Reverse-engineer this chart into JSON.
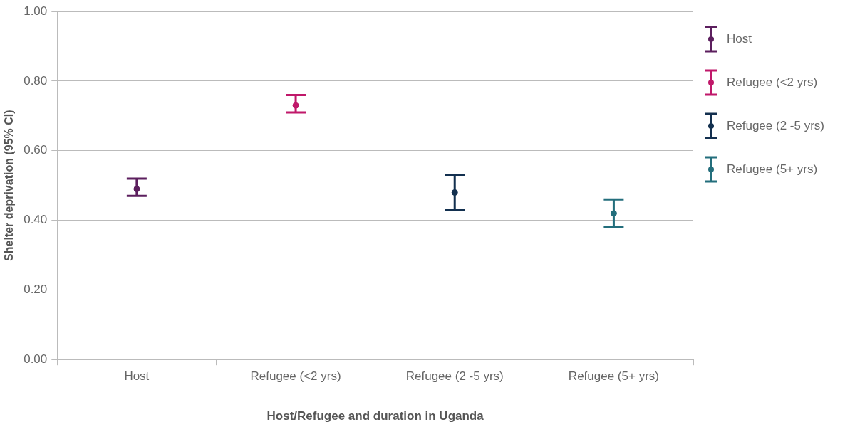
{
  "chart_data": {
    "type": "scatter",
    "xlabel": "Host/Refugee and duration in Uganda",
    "ylabel": "Shelter deprivation (95% CI)",
    "categories": [
      "Host",
      "Refugee (<2 yrs)",
      "Refugee (2 -5 yrs)",
      "Refugee (5+ yrs)"
    ],
    "series": [
      {
        "name": "Host",
        "color": "#5c1f5e",
        "x": [
          "Host"
        ],
        "values": [
          0.49
        ],
        "errors": [
          [
            0.47,
            0.52
          ]
        ]
      },
      {
        "name": "Refugee (<2 yrs)",
        "color": "#c0186a",
        "x": [
          "Refugee (<2 yrs)"
        ],
        "values": [
          0.73
        ],
        "errors": [
          [
            0.71,
            0.76
          ]
        ]
      },
      {
        "name": "Refugee (2 -5 yrs)",
        "color": "#13304f",
        "x": [
          "Refugee (2 -5 yrs)"
        ],
        "values": [
          0.48
        ],
        "errors": [
          [
            0.43,
            0.53
          ]
        ]
      },
      {
        "name": "Refugee (5+ yrs)",
        "color": "#236e7c",
        "x": [
          "Refugee (5+ yrs)"
        ],
        "values": [
          0.42
        ],
        "errors": [
          [
            0.38,
            0.46
          ]
        ]
      }
    ],
    "ylim": [
      0,
      1
    ],
    "yticks": [
      {
        "value": 0,
        "label": "0.00"
      },
      {
        "value": 0.2,
        "label": "0.20"
      },
      {
        "value": 0.4,
        "label": "0.40"
      },
      {
        "value": 0.6,
        "label": "0.60"
      },
      {
        "value": 0.8,
        "label": "0.80"
      },
      {
        "value": 1,
        "label": "1.00"
      }
    ],
    "grid": "y",
    "legend": "right",
    "marker": "circle"
  }
}
